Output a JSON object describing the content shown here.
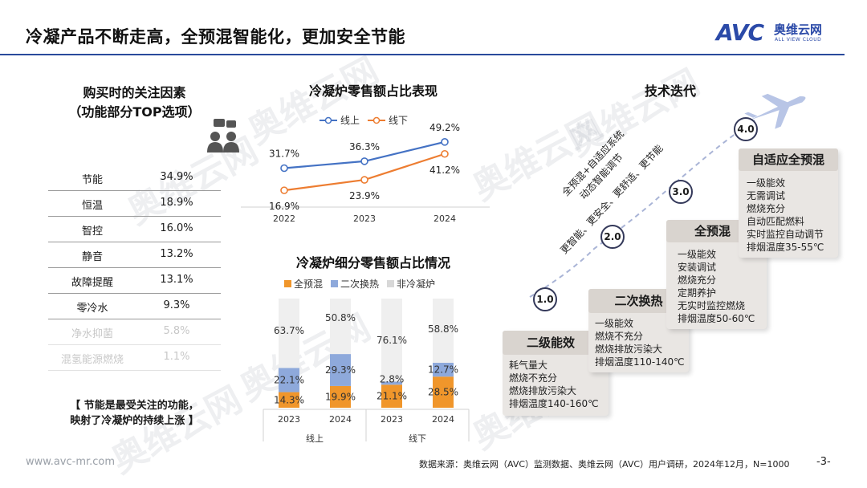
{
  "header": {
    "title": "冷凝产品不断走高，全预混智能化，更加安全节能"
  },
  "logo": {
    "brand": "AVC",
    "cn": "奥维云网",
    "en": "ALL VIEW CLOUD"
  },
  "watermark": {
    "cn": "奥维云网",
    "en": "ALL VIEW CLOUD"
  },
  "factors": {
    "title": "购买时的关注因素",
    "subtitle": "（功能部分TOP选项）",
    "rows": [
      {
        "name": "节能",
        "value": "34.9%"
      },
      {
        "name": "恒温",
        "value": "18.9%"
      },
      {
        "name": "智控",
        "value": "16.0%"
      },
      {
        "name": "静音",
        "value": "13.2%"
      },
      {
        "name": "故障提醒",
        "value": "13.1%"
      },
      {
        "name": "零冷水",
        "value": "9.3%"
      },
      {
        "name": "净水抑菌",
        "value": "5.8%"
      },
      {
        "name": "混氢能源燃烧",
        "value": "1.1%"
      }
    ],
    "conclusion_line1": "【 节能是最受关注的功能，",
    "conclusion_line2": "映射了冷凝炉的持续上涨 】"
  },
  "chart_data": [
    {
      "type": "line",
      "title": "冷凝炉零售额占比表现",
      "x": [
        "2022",
        "2023",
        "2024"
      ],
      "series": [
        {
          "name": "线上",
          "values": [
            31.7,
            36.3,
            49.2
          ],
          "labels": [
            "31.7%",
            "36.3%",
            "49.2%"
          ],
          "color": "#4472c4"
        },
        {
          "name": "线下",
          "values": [
            16.9,
            23.9,
            41.2
          ],
          "labels": [
            "16.9%",
            "23.9%",
            "41.2%"
          ],
          "color": "#ed7d31"
        }
      ],
      "ylim": [
        10,
        55
      ],
      "legend": "top"
    },
    {
      "type": "bar",
      "stacked": true,
      "title": "冷凝炉细分零售额占比情况",
      "categories": [
        "2023",
        "2024",
        "2023",
        "2024"
      ],
      "groups": [
        "线上",
        "线下"
      ],
      "series": [
        {
          "name": "全预混",
          "values": [
            14.3,
            19.9,
            21.1,
            28.5
          ],
          "labels": [
            "14.3%",
            "19.9%",
            "21.1%",
            "28.5%"
          ],
          "color": "#f0962b"
        },
        {
          "name": "二次换热",
          "values": [
            22.1,
            29.3,
            2.8,
            12.7
          ],
          "labels": [
            "22.1%",
            "29.3%",
            "2.8%",
            "12.7%"
          ],
          "color": "#8ea9db"
        },
        {
          "name": "非冷凝炉",
          "values": [
            63.7,
            50.8,
            76.1,
            58.8
          ],
          "labels": [
            "63.7%",
            "50.8%",
            "76.1%",
            "58.8%"
          ],
          "color": "#efefef"
        }
      ],
      "ylim": [
        0,
        100
      ],
      "legend": "top"
    }
  ],
  "tech": {
    "title": "技术迭代",
    "diag1": "全预混+自适应系统",
    "diag2": "动态智能调节",
    "diag3": "更智能、更安全、更舒适、更节能",
    "stages": [
      {
        "num": "1.0",
        "name": "二级能效",
        "items": [
          "耗气量大",
          "燃烧不充分",
          "燃烧排放污染大",
          "排烟温度140-160℃"
        ]
      },
      {
        "num": "2.0",
        "name": "二次换热",
        "items": [
          "一级能效",
          "燃烧不充分",
          "燃烧排放污染大",
          "排烟温度110-140℃"
        ]
      },
      {
        "num": "3.0",
        "name": "全预混",
        "items": [
          "一级能效",
          "安装调试",
          "燃烧充分",
          "定期养护",
          "无实时监控燃烧",
          "排烟温度50-60℃"
        ]
      },
      {
        "num": "4.0",
        "name": "自适应全预混",
        "items": [
          "一级能效",
          "无需调试",
          "燃烧充分",
          "自动匹配燃料",
          "实时监控自动调节",
          "排烟温度35-55℃"
        ]
      }
    ]
  },
  "footer": {
    "url": "www.avc-mr.com",
    "source": "数据来源：奥维云网（AVC）监测数据、奥维云网（AVC）用户调研，2024年12月，N=1000",
    "page": "-3-"
  },
  "colors": {
    "accent": "#2b4aa8",
    "online": "#4472c4",
    "offline": "#ed7d31"
  }
}
